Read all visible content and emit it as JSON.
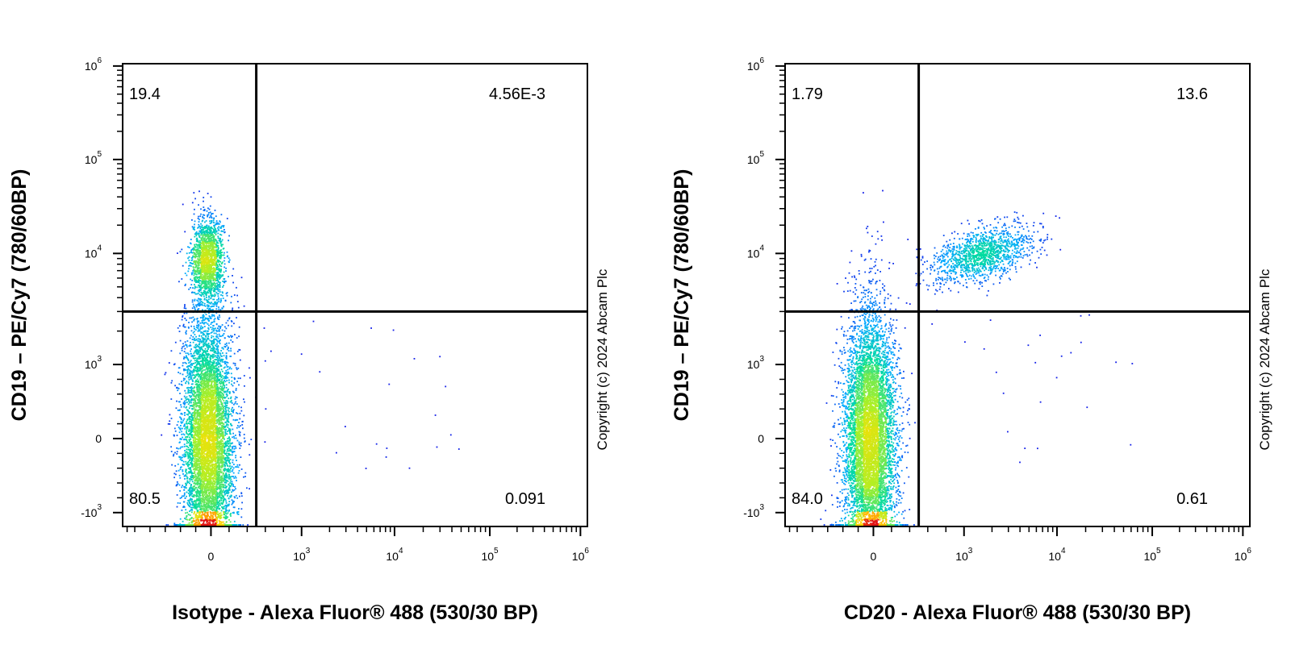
{
  "chart_data": [
    {
      "type": "scatter",
      "subtype": "flow-cytometry-density-dot-plot",
      "xlabel": "Isotype - Alexa Fluor® 488 (530/30 BP)",
      "ylabel": "CD19 – PE/Cy7 (780/60BP)",
      "x_scale": "biexponential",
      "y_scale": "biexponential",
      "x_ticks": [
        {
          "value": 0,
          "base": "0",
          "exp": ""
        },
        {
          "value": 1000,
          "base": "10",
          "exp": "3"
        },
        {
          "value": 10000,
          "base": "10",
          "exp": "4"
        },
        {
          "value": 100000,
          "base": "10",
          "exp": "5"
        },
        {
          "value": 1000000,
          "base": "10",
          "exp": "6"
        }
      ],
      "y_ticks": [
        {
          "value": -1000,
          "base": "-10",
          "exp": "3"
        },
        {
          "value": 0,
          "base": "0",
          "exp": ""
        },
        {
          "value": 1000,
          "base": "10",
          "exp": "3"
        },
        {
          "value": 10000,
          "base": "10",
          "exp": "4"
        },
        {
          "value": 100000,
          "base": "10",
          "exp": "5"
        },
        {
          "value": 1000000,
          "base": "10",
          "exp": "6"
        }
      ],
      "gate": {
        "x": 500,
        "y": 3000
      },
      "quadrants": {
        "top_left": "19.4",
        "top_right": "4.56E-3",
        "bottom_left": "80.5",
        "bottom_right": "0.091"
      },
      "copyright": "Copyright (c) 2024 Abcam Plc",
      "populations": [
        {
          "x_center": -50,
          "y_center": 9000,
          "x_spread": 0.1,
          "y_spread": 0.32,
          "weight": 0.19
        },
        {
          "x_center": -50,
          "y_center": -50,
          "x_spread": 0.16,
          "y_spread": 1.0,
          "weight": 0.81
        }
      ]
    },
    {
      "type": "scatter",
      "subtype": "flow-cytometry-density-dot-plot",
      "xlabel": "CD20 - Alexa Fluor® 488 (530/30 BP)",
      "ylabel": "CD19 – PE/Cy7 (780/60BP)",
      "x_scale": "biexponential",
      "y_scale": "biexponential",
      "x_ticks": [
        {
          "value": 0,
          "base": "0",
          "exp": ""
        },
        {
          "value": 1000,
          "base": "10",
          "exp": "3"
        },
        {
          "value": 10000,
          "base": "10",
          "exp": "4"
        },
        {
          "value": 100000,
          "base": "10",
          "exp": "5"
        },
        {
          "value": 1000000,
          "base": "10",
          "exp": "6"
        }
      ],
      "y_ticks": [
        {
          "value": -1000,
          "base": "-10",
          "exp": "3"
        },
        {
          "value": 0,
          "base": "0",
          "exp": ""
        },
        {
          "value": 1000,
          "base": "10",
          "exp": "3"
        },
        {
          "value": 10000,
          "base": "10",
          "exp": "4"
        },
        {
          "value": 100000,
          "base": "10",
          "exp": "5"
        },
        {
          "value": 1000000,
          "base": "10",
          "exp": "6"
        }
      ],
      "gate": {
        "x": 500,
        "y": 3000
      },
      "quadrants": {
        "top_left": "1.79",
        "top_right": "13.6",
        "bottom_left": "84.0",
        "bottom_right": "0.61"
      },
      "copyright": "Copyright (c) 2024 Abcam Plc",
      "populations": [
        {
          "x_center": 1500,
          "y_center": 10000,
          "x_spread": 0.28,
          "y_spread": 0.22,
          "weight": 0.15
        },
        {
          "x_center": -50,
          "y_center": -50,
          "x_spread": 0.16,
          "y_spread": 1.0,
          "weight": 0.85
        }
      ]
    }
  ]
}
